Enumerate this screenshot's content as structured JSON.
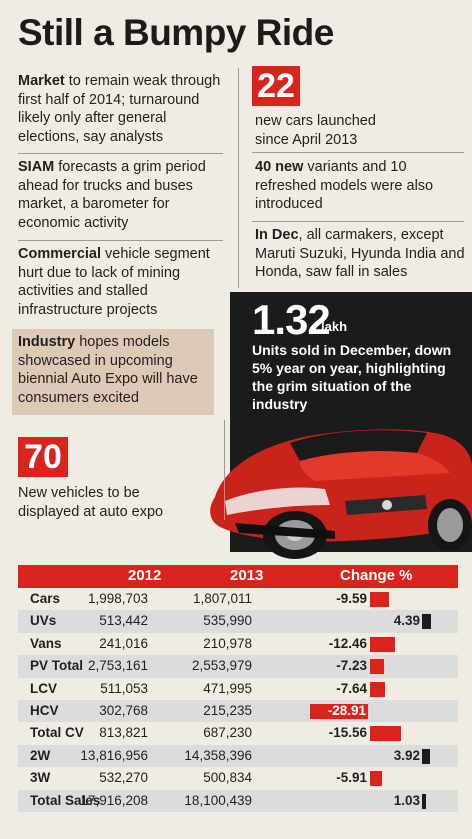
{
  "title": "Still a Bumpy Ride",
  "left_points": [
    {
      "bold": "Market",
      "text": " to remain weak through first half of 2014; turnaround likely only after general elections, say analysts"
    },
    {
      "bold": "SIAM",
      "text": " forecasts a grim period ahead for trucks and buses market, a barometer for economic activity"
    },
    {
      "bold": "Commercial",
      "text": " vehicle segment hurt due to lack of mining activities and stalled infrastructure projects"
    },
    {
      "bold": "Industry",
      "text": " hopes models showcased in upcoming biennial Auto Expo will have consumers excited"
    }
  ],
  "stat_22": {
    "number": "22",
    "text": "new cars launched since April 2013"
  },
  "right_points": [
    {
      "bold": "40 new",
      "text": " variants and 10 refreshed models were also introduced"
    },
    {
      "bold": "In Dec",
      "text": ", all carmakers, except Maruti Suzuki, Hyunda India and Honda, saw fall in sales"
    }
  ],
  "stat_132": {
    "number": "1.32",
    "unit": "lakh",
    "text": "Units sold in December, down 5% year on year, highlighting the grim situation of the industry"
  },
  "stat_70": {
    "number": "70",
    "text": "New vehicles to be displayed at auto expo"
  },
  "colors": {
    "accent": "#d9231d",
    "dark": "#1b1b1b",
    "bar_positive": "#1b1b1b",
    "bar_negative": "#d9231d"
  },
  "chart_data": {
    "type": "table",
    "headers": [
      "",
      "2012",
      "2013",
      "Change %"
    ],
    "rows": [
      {
        "label": "Cars",
        "y2012": "1,998,703",
        "y2013": "1,807,011",
        "change": -9.59,
        "change_label": "-9.59"
      },
      {
        "label": "UVs",
        "y2012": "513,442",
        "y2013": "535,990",
        "change": 4.39,
        "change_label": "4.39"
      },
      {
        "label": "Vans",
        "y2012": "241,016",
        "y2013": "210,978",
        "change": -12.46,
        "change_label": "-12.46"
      },
      {
        "label": "PV Total",
        "y2012": "2,753,161",
        "y2013": "2,553,979",
        "change": -7.23,
        "change_label": "-7.23"
      },
      {
        "label": "LCV",
        "y2012": "511,053",
        "y2013": "471,995",
        "change": -7.64,
        "change_label": "-7.64"
      },
      {
        "label": "HCV",
        "y2012": "302,768",
        "y2013": "215,235",
        "change": -28.91,
        "change_label": "-28.91"
      },
      {
        "label": "Total CV",
        "y2012": "813,821",
        "y2013": "687,230",
        "change": -15.56,
        "change_label": "-15.56"
      },
      {
        "label": "2W",
        "y2012": "13,816,956",
        "y2013": "14,358,396",
        "change": 3.92,
        "change_label": "3.92"
      },
      {
        "label": "3W",
        "y2012": "532,270",
        "y2013": "500,834",
        "change": -5.91,
        "change_label": "-5.91"
      },
      {
        "label": "Total Sales",
        "y2012": "17,916,208",
        "y2013": "18,100,439",
        "change": 1.03,
        "change_label": "1.03"
      }
    ]
  }
}
